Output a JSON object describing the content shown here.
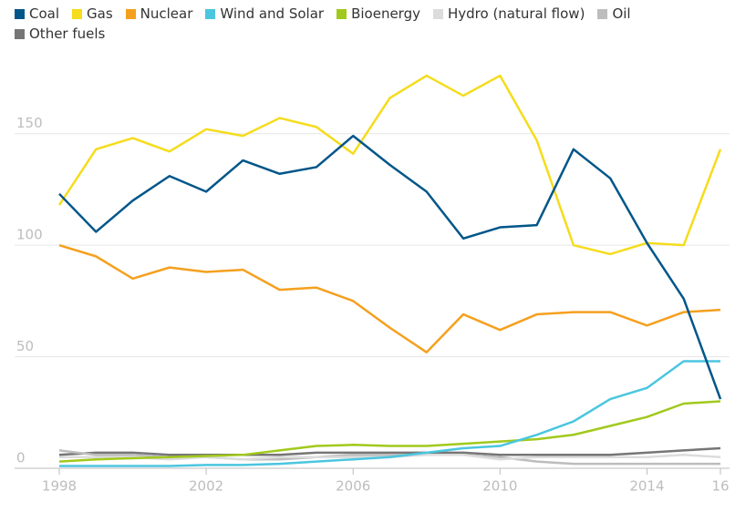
{
  "chart_data": {
    "type": "line",
    "x": [
      1998,
      1999,
      2000,
      2001,
      2002,
      2003,
      2004,
      2005,
      2006,
      2007,
      2008,
      2009,
      2010,
      2011,
      2012,
      2013,
      2014,
      2015,
      2016
    ],
    "series": [
      {
        "name": "Coal",
        "color": "#005689",
        "values": [
          123,
          106,
          120,
          131,
          124,
          138,
          132,
          135,
          149,
          136,
          124,
          103,
          108,
          109,
          143,
          130,
          101,
          76,
          31
        ]
      },
      {
        "name": "Gas",
        "color": "#f5dc1c",
        "values": [
          118,
          143,
          148,
          142,
          152,
          149,
          157,
          153,
          141,
          166,
          176,
          167,
          176,
          147,
          100,
          96,
          101,
          100,
          143
        ]
      },
      {
        "name": "Nuclear",
        "color": "#f5a01e",
        "values": [
          100,
          95,
          85,
          90,
          88,
          89,
          80,
          81,
          75,
          63,
          52,
          69,
          62,
          69,
          70,
          70,
          64,
          70,
          71
        ]
      },
      {
        "name": "Wind and Solar",
        "color": "#4bc6df",
        "values": [
          1,
          1,
          1,
          1,
          1.5,
          1.5,
          2,
          3,
          4,
          5,
          7,
          9,
          10,
          15,
          21,
          31,
          36,
          48,
          48
        ]
      },
      {
        "name": "Bioenergy",
        "color": "#a1c91c",
        "values": [
          3,
          4,
          4.5,
          5,
          5.5,
          6,
          8,
          10,
          10.5,
          10,
          10,
          11,
          12,
          13,
          15,
          19,
          23,
          29,
          30
        ]
      },
      {
        "name": "Hydro (natural flow)",
        "color": "#dcdcdc",
        "values": [
          5,
          5,
          5,
          4,
          5,
          4,
          5,
          5,
          5,
          5,
          6,
          6,
          4,
          5,
          5,
          5,
          5,
          6,
          5
        ]
      },
      {
        "name": "Oil",
        "color": "#bdbdbd",
        "values": [
          8,
          6,
          6,
          5,
          5,
          4,
          4,
          5,
          6,
          6,
          6,
          6,
          5,
          3,
          2,
          2,
          2,
          2,
          2
        ]
      },
      {
        "name": "Other fuels",
        "color": "#767676",
        "values": [
          6,
          7,
          7,
          6,
          6,
          6,
          6,
          7,
          7,
          7,
          7,
          7,
          6,
          6,
          6,
          6,
          7,
          8,
          9
        ]
      }
    ],
    "xlim": [
      1998,
      2016
    ],
    "xticks": [
      1998,
      2002,
      2006,
      2010,
      2014,
      {
        "value": 2016,
        "label": "16"
      }
    ],
    "ylim": [
      0,
      185
    ],
    "yticks": [
      0,
      50,
      100,
      150
    ],
    "grid": true
  }
}
